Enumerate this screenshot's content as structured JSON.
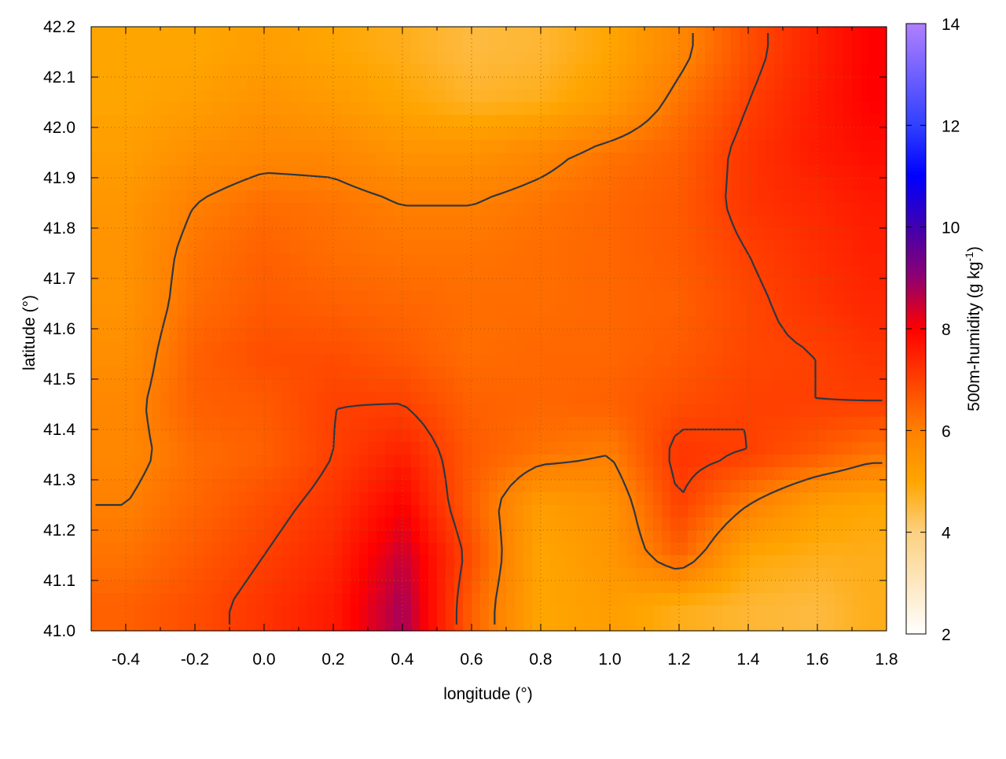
{
  "chart_data": {
    "type": "heatmap",
    "xlabel": "longitude (°)",
    "ylabel": "latitude (°)",
    "xlim": [
      -0.5,
      1.8
    ],
    "ylim": [
      41.0,
      42.2
    ],
    "xticks": [
      "-0.4",
      "-0.2",
      "0.0",
      "0.2",
      "0.4",
      "0.6",
      "0.8",
      "1.0",
      "1.2",
      "1.4",
      "1.6",
      "1.8"
    ],
    "yticks": [
      "41.0",
      "41.1",
      "41.2",
      "41.3",
      "41.4",
      "41.5",
      "41.6",
      "41.7",
      "41.8",
      "41.9",
      "42.0",
      "42.1",
      "42.2"
    ],
    "grid": true,
    "colorbar": {
      "label": "500m-humidity (g kg-1)",
      "label_main": "500m-humidity (g kg",
      "label_sup": "-1",
      "label_close": ")",
      "range": [
        2,
        14
      ],
      "ticks": [
        "2",
        "4",
        "6",
        "8",
        "10",
        "12",
        "14"
      ],
      "colormap": [
        {
          "v": 2,
          "c": "#ffffff"
        },
        {
          "v": 4,
          "c": "#fcd080"
        },
        {
          "v": 5,
          "c": "#ffa500"
        },
        {
          "v": 6,
          "c": "#ff8000"
        },
        {
          "v": 7,
          "c": "#ff4000"
        },
        {
          "v": 8,
          "c": "#ff0000"
        },
        {
          "v": 9,
          "c": "#900070"
        },
        {
          "v": 10,
          "c": "#4000b0"
        },
        {
          "v": 11,
          "c": "#0000ff"
        },
        {
          "v": 12,
          "c": "#3040ff"
        },
        {
          "v": 14,
          "c": "#b080ff"
        }
      ]
    },
    "grid_lon": [
      -0.4,
      -0.2,
      0.0,
      0.2,
      0.4,
      0.6,
      0.8,
      1.0,
      1.2,
      1.4,
      1.6,
      1.75
    ],
    "grid_lat": [
      42.15,
      42.05,
      41.95,
      41.85,
      41.75,
      41.65,
      41.55,
      41.45,
      41.35,
      41.25,
      41.15,
      41.05
    ],
    "values": [
      [
        5.0,
        5.0,
        5.2,
        5.0,
        4.8,
        4.5,
        4.6,
        5.0,
        5.8,
        6.8,
        7.5,
        8.0
      ],
      [
        5.0,
        5.2,
        5.5,
        5.3,
        5.0,
        4.7,
        4.8,
        5.3,
        6.2,
        7.0,
        7.6,
        8.0
      ],
      [
        5.2,
        5.6,
        5.8,
        5.8,
        5.5,
        5.5,
        5.8,
        6.2,
        6.5,
        7.2,
        7.6,
        7.8
      ],
      [
        5.4,
        6.0,
        6.3,
        6.2,
        6.0,
        6.0,
        6.2,
        6.4,
        6.6,
        7.2,
        7.4,
        7.6
      ],
      [
        5.5,
        6.2,
        6.5,
        6.3,
        6.2,
        6.2,
        6.3,
        6.4,
        6.6,
        7.0,
        7.3,
        7.5
      ],
      [
        5.5,
        6.3,
        6.6,
        6.5,
        6.4,
        6.3,
        6.3,
        6.4,
        6.5,
        6.9,
        7.2,
        7.4
      ],
      [
        5.6,
        6.5,
        6.8,
        6.8,
        6.6,
        6.3,
        6.4,
        6.4,
        6.6,
        6.9,
        7.0,
        7.2
      ],
      [
        5.8,
        6.5,
        6.6,
        7.0,
        7.0,
        6.5,
        6.4,
        6.5,
        6.8,
        7.0,
        7.0,
        7.0
      ],
      [
        5.8,
        6.3,
        6.5,
        7.0,
        7.5,
        6.6,
        6.2,
        6.0,
        7.2,
        7.0,
        6.6,
        6.2
      ],
      [
        6.0,
        6.4,
        6.8,
        7.2,
        8.0,
        6.5,
        5.2,
        5.5,
        7.0,
        6.0,
        5.2,
        5.0
      ],
      [
        6.2,
        6.6,
        7.0,
        7.4,
        8.5,
        6.8,
        5.0,
        5.4,
        6.5,
        5.0,
        4.8,
        4.8
      ],
      [
        6.5,
        6.8,
        7.2,
        7.6,
        8.8,
        6.5,
        5.0,
        5.2,
        4.8,
        4.6,
        4.5,
        4.8
      ]
    ],
    "contour_levels": [
      6,
      7
    ]
  }
}
